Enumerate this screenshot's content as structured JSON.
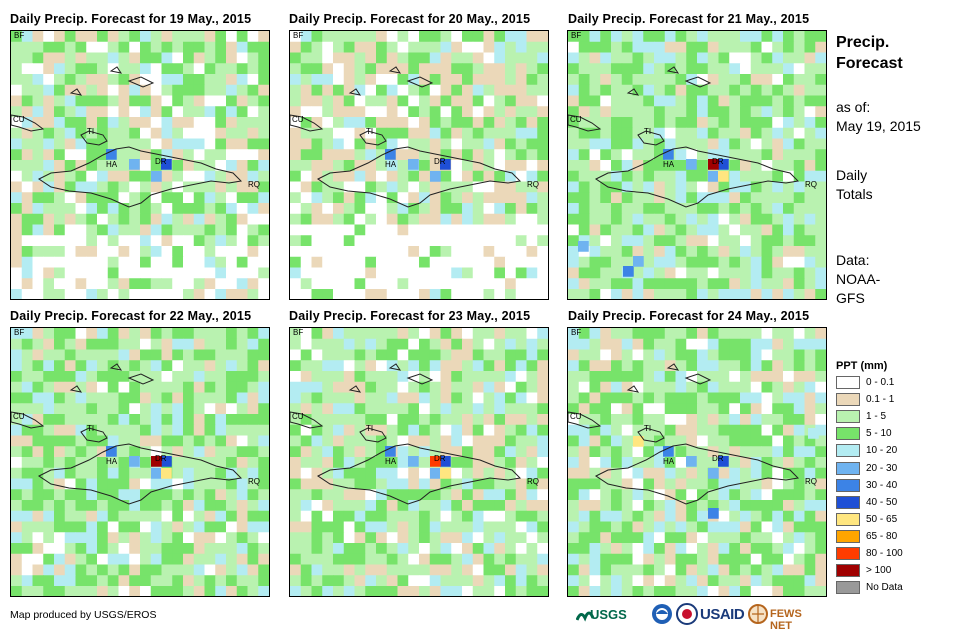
{
  "panels": [
    {
      "title": "Daily Precip. Forecast for 19 May., 2015",
      "seed": 11,
      "wet": 0.55,
      "dry": 0.35
    },
    {
      "title": "Daily Precip. Forecast for 20 May., 2015",
      "seed": 23,
      "wet": 0.25,
      "dry": 0.45
    },
    {
      "title": "Daily Precip. Forecast for 21 May., 2015",
      "seed": 37,
      "wet": 0.85,
      "dry": 0.15
    },
    {
      "title": "Daily Precip. Forecast for 22 May., 2015",
      "seed": 41,
      "wet": 0.8,
      "dry": 0.2
    },
    {
      "title": "Daily Precip. Forecast for 23 May., 2015",
      "seed": 53,
      "wet": 0.6,
      "dry": 0.3
    },
    {
      "title": "Daily Precip. Forecast for 24 May., 2015",
      "seed": 67,
      "wet": 0.75,
      "dry": 0.2
    }
  ],
  "map_labels": {
    "bf": "BF",
    "ti": "TI",
    "cu": "CU",
    "ha": "HA",
    "dr": "DR",
    "rq": "RQ"
  },
  "side": {
    "heading_line1": "Precip.",
    "heading_line2": "Forecast",
    "asof_label": "as of:",
    "asof_date": "May 19, 2015",
    "daily": "Daily",
    "totals": "Totals",
    "data_label": "Data:",
    "data_src1": "NOAA-",
    "data_src2": "GFS"
  },
  "legend": {
    "title": "PPT (mm)",
    "items": [
      {
        "label": "0 - 0.1",
        "color": "#ffffff"
      },
      {
        "label": "0.1 - 1",
        "color": "#ebd8b9"
      },
      {
        "label": "1 - 5",
        "color": "#b9f2b0"
      },
      {
        "label": "5 - 10",
        "color": "#77e36a"
      },
      {
        "label": "10 - 20",
        "color": "#b3ecf2"
      },
      {
        "label": "20 - 30",
        "color": "#6fb3f0"
      },
      {
        "label": "30 - 40",
        "color": "#3c83e6"
      },
      {
        "label": "40 - 50",
        "color": "#1f4fd6"
      },
      {
        "label": "50 - 65",
        "color": "#ffe680"
      },
      {
        "label": "65 - 80",
        "color": "#ffa500"
      },
      {
        "label": "80 - 100",
        "color": "#ff3c00"
      },
      {
        "label": "> 100",
        "color": "#a00000"
      },
      {
        "label": "No Data",
        "color": "#999999"
      }
    ]
  },
  "footer": "Map produced by USGS/EROS",
  "logos": {
    "usgs": "USGS",
    "usaid": "USAID",
    "fews": "FEWS NET"
  }
}
